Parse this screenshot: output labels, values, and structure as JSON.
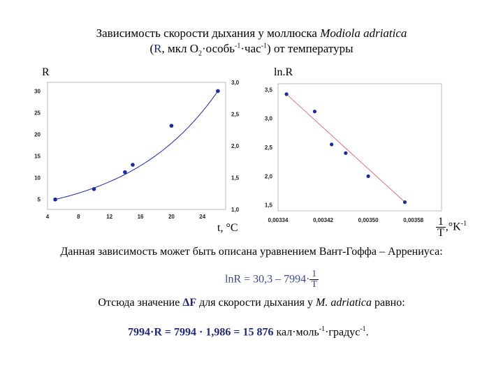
{
  "title": {
    "line1_prefix": "Зависимость скорости дыхания у моллюска",
    "line1_species": "Modiola adriatica",
    "line2_open": "(",
    "line2_R": "R",
    "line2_units_a": ", мкл O",
    "line2_sub2": "2",
    "line2_units_b": "·особь",
    "line2_sup1": "-1",
    "line2_units_c": "·час",
    "line2_sup2": "-1",
    "line2_tail": ") от температуры"
  },
  "chart_data": [
    {
      "type": "scatter",
      "ylabel_left": "R",
      "ylabel_right": "ln.R",
      "xlabel": "t, °C",
      "x_ticks": [
        "4",
        "8",
        "12",
        "16",
        "20",
        "24"
      ],
      "y_left_ticks": [
        "5",
        "10",
        "15",
        "20",
        "25",
        "30"
      ],
      "y_right_ticks": [
        "1,0",
        "1,5",
        "2,0",
        "2,5",
        "3,0"
      ],
      "xlim": [
        4,
        27
      ],
      "ylim_left": [
        2.7,
        32
      ],
      "ylim_right": [
        1.0,
        3.0
      ],
      "x": [
        5,
        10,
        14,
        15,
        20,
        26
      ],
      "y": [
        5,
        7.4,
        11.3,
        13.0,
        22.0,
        30.0
      ],
      "fit": "exponential",
      "dot_color": "#1a2aa0",
      "curve_color": "#1a2aa0"
    },
    {
      "type": "scatter",
      "ylabel": "ln.R",
      "xlabel_num": "1",
      "xlabel_den": "T",
      "xlabel_unit": ",°K",
      "xlabel_sup": "-1",
      "x_ticks": [
        "0,00334",
        "0,00342",
        "0,00350",
        "0,00358"
      ],
      "x_tick_values": [
        0.00334,
        0.00342,
        0.0035,
        0.00358
      ],
      "y_ticks": [
        "1,5",
        "2,0",
        "2,5",
        "3,0",
        "3,5"
      ],
      "y_tick_values": [
        1.5,
        2.0,
        2.5,
        3.0,
        3.5
      ],
      "xlim": [
        0.00334,
        0.00363
      ],
      "ylim": [
        1.4,
        3.6
      ],
      "x": [
        0.003355,
        0.003405,
        0.003435,
        0.00346,
        0.0035,
        0.003565
      ],
      "y": [
        3.42,
        3.12,
        2.55,
        2.4,
        2.0,
        1.55
      ],
      "fit": "linear",
      "dot_color": "#1a2aa0",
      "line_color": "#e05050"
    }
  ],
  "text1": "Данная зависимость может быть описана уравнением Вант-Гоффа – Аррениуса:",
  "equation": {
    "lhs": "lnR = 30,3 – 7994·",
    "num": "1",
    "den": "T"
  },
  "text2_prefix": "Отсюда значение ",
  "text2_symbol": "ΔF",
  "text2_mid": " для скорости дыхания у ",
  "text2_species": "M. adriatica",
  "text2_suffix": " равно:",
  "result": {
    "main": "7994·R  =  7994 · 1,986 = 15 876",
    "units": " кал·моль",
    "sup1": "-1",
    "units2": "·градус",
    "sup2": "-1",
    "end": "."
  }
}
